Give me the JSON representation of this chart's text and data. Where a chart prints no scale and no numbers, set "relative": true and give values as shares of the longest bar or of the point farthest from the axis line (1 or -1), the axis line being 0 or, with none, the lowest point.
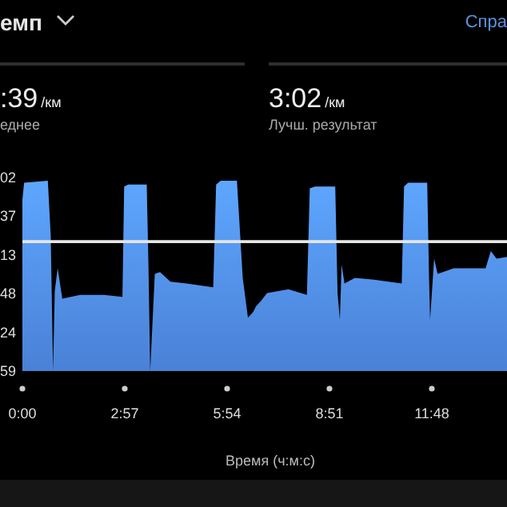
{
  "chart_data": {
    "type": "area",
    "relative": true,
    "title": "емп",
    "xlabel": "Время (ч:м:с)",
    "annotations": [
      "Спра",
      ":39/км",
      "еднее",
      "3:02/км",
      "Лучш. результат",
      "02",
      "37",
      "13",
      "48",
      "24",
      "59"
    ],
    "x": [
      0,
      3,
      44,
      49,
      53,
      56,
      61,
      69,
      100,
      141,
      173,
      176,
      183,
      215,
      218,
      221,
      229,
      238,
      256,
      284,
      330,
      335,
      343,
      371,
      381,
      390,
      399,
      404,
      413,
      423,
      460,
      492,
      497,
      506,
      541,
      545,
      549,
      552,
      557,
      575,
      608,
      656,
      660,
      667,
      700,
      703,
      705,
      712,
      718,
      746,
      801,
      810,
      820,
      838
    ],
    "series": [
      {
        "color": "#4f8be6",
        "values": [
          0.9,
          0.99,
          1.0,
          0.71,
          0,
          0.42,
          0.54,
          0.38,
          0.4,
          0.4,
          0.39,
          0.97,
          0.98,
          0.98,
          0.55,
          0,
          0.51,
          0.52,
          0.47,
          0.46,
          0.44,
          0.98,
          1.0,
          1.0,
          0.49,
          0.28,
          0.31,
          0.34,
          0.37,
          0.41,
          0.43,
          0.4,
          0.96,
          0.97,
          0.97,
          0.41,
          0.27,
          0.56,
          0.46,
          0.49,
          0.48,
          0.46,
          0.97,
          0.99,
          0.99,
          0.52,
          0.27,
          0.59,
          0.51,
          0.54,
          0.54,
          0.63,
          0.59,
          0.6
        ]
      }
    ],
    "xlim": [
      0,
      838
    ],
    "xticks": [
      {
        "value": 0,
        "label": "0:00"
      },
      {
        "value": 177,
        "label": "2:57"
      },
      {
        "value": 354,
        "label": "5:54"
      },
      {
        "value": 531,
        "label": "8:51"
      },
      {
        "value": 708,
        "label": "11:48"
      }
    ],
    "ref_lines": [
      {
        "axis": "y",
        "value": 0.68,
        "color": "#e6e6e6"
      }
    ]
  }
}
